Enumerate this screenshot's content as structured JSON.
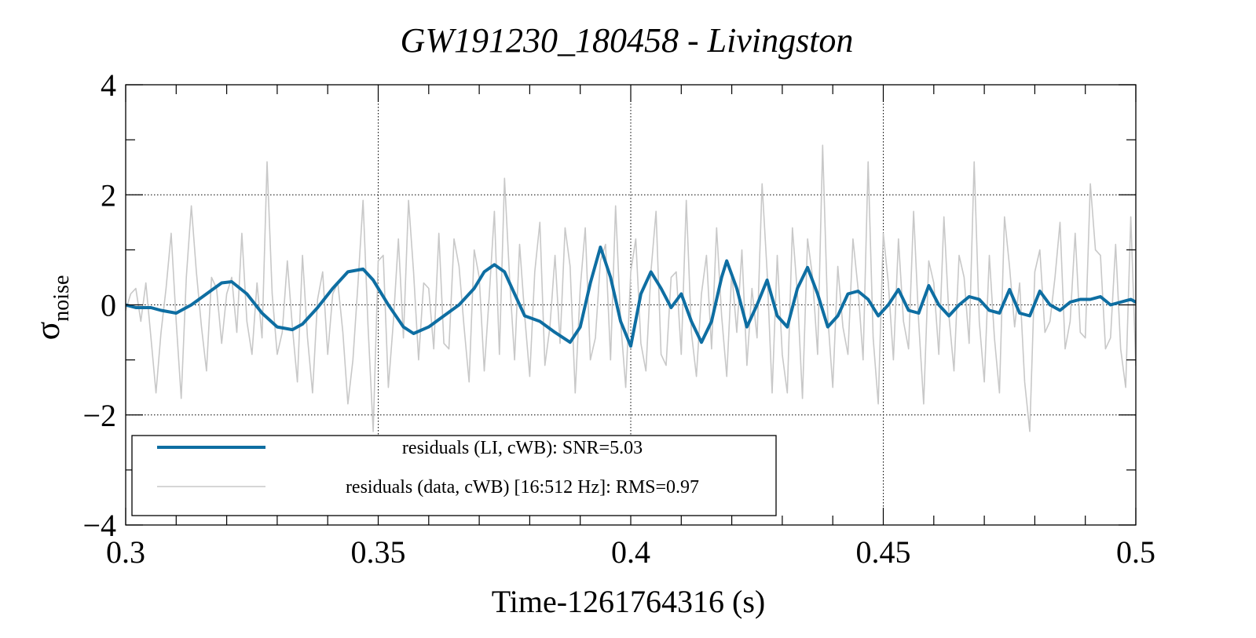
{
  "chart_data": {
    "type": "line",
    "title": "GW191230_180458 - Livingston",
    "xlabel": "Time-1261764316 (s)",
    "ylabel_main": "σ",
    "ylabel_sub": "noise",
    "xlim": [
      0.3,
      0.5
    ],
    "ylim": [
      -4,
      4
    ],
    "xticks": [
      0.3,
      0.35,
      0.4,
      0.45,
      0.5
    ],
    "xtick_labels": [
      "0.3",
      "0.35",
      "0.4",
      "0.45",
      "0.5"
    ],
    "yticks": [
      -4,
      -2,
      0,
      2,
      4
    ],
    "ytick_labels": [
      "−4",
      "−2",
      "0",
      "2",
      "4"
    ],
    "grid": true,
    "legend_position": "bottom-left",
    "series": [
      {
        "name": "residuals (LI, cWB): SNR=5.03",
        "color": "#0e6ea2",
        "x": [
          0.3,
          0.302,
          0.305,
          0.307,
          0.31,
          0.313,
          0.316,
          0.319,
          0.321,
          0.324,
          0.327,
          0.33,
          0.333,
          0.335,
          0.338,
          0.341,
          0.344,
          0.347,
          0.349,
          0.352,
          0.355,
          0.357,
          0.36,
          0.363,
          0.366,
          0.369,
          0.371,
          0.373,
          0.375,
          0.377,
          0.379,
          0.382,
          0.385,
          0.388,
          0.39,
          0.392,
          0.394,
          0.396,
          0.398,
          0.4,
          0.402,
          0.404,
          0.406,
          0.408,
          0.41,
          0.412,
          0.414,
          0.416,
          0.418,
          0.419,
          0.421,
          0.423,
          0.425,
          0.427,
          0.429,
          0.431,
          0.433,
          0.435,
          0.437,
          0.439,
          0.441,
          0.443,
          0.445,
          0.447,
          0.449,
          0.451,
          0.453,
          0.455,
          0.457,
          0.459,
          0.461,
          0.463,
          0.465,
          0.467,
          0.469,
          0.471,
          0.473,
          0.475,
          0.477,
          0.479,
          0.481,
          0.483,
          0.485,
          0.487,
          0.489,
          0.491,
          0.493,
          0.495,
          0.497,
          0.499,
          0.5
        ],
        "y": [
          0.0,
          -0.05,
          -0.05,
          -0.1,
          -0.15,
          0.0,
          0.2,
          0.4,
          0.42,
          0.2,
          -0.15,
          -0.4,
          -0.45,
          -0.35,
          -0.05,
          0.3,
          0.6,
          0.65,
          0.45,
          0.0,
          -0.4,
          -0.52,
          -0.4,
          -0.2,
          0.0,
          0.3,
          0.6,
          0.73,
          0.6,
          0.2,
          -0.2,
          -0.3,
          -0.5,
          -0.68,
          -0.4,
          0.4,
          1.05,
          0.5,
          -0.3,
          -0.75,
          0.2,
          0.6,
          0.3,
          -0.05,
          0.2,
          -0.3,
          -0.68,
          -0.3,
          0.5,
          0.8,
          0.3,
          -0.4,
          0.0,
          0.45,
          -0.2,
          -0.4,
          0.3,
          0.68,
          0.2,
          -0.4,
          -0.2,
          0.2,
          0.25,
          0.1,
          -0.2,
          0.0,
          0.28,
          -0.1,
          -0.15,
          0.35,
          0.0,
          -0.2,
          0.0,
          0.15,
          0.1,
          -0.1,
          -0.15,
          0.28,
          -0.15,
          -0.2,
          0.25,
          0.0,
          -0.1,
          0.05,
          0.1,
          0.1,
          0.15,
          0.0,
          0.05,
          0.1,
          0.05
        ]
      },
      {
        "name": "residuals (data, cWB) [16:512 Hz]: RMS=0.97",
        "color": "#c8c8c8",
        "x": [
          0.3,
          0.301,
          0.302,
          0.303,
          0.304,
          0.305,
          0.306,
          0.307,
          0.308,
          0.309,
          0.31,
          0.311,
          0.312,
          0.313,
          0.314,
          0.315,
          0.316,
          0.317,
          0.318,
          0.319,
          0.32,
          0.321,
          0.322,
          0.323,
          0.324,
          0.325,
          0.326,
          0.327,
          0.328,
          0.329,
          0.33,
          0.331,
          0.332,
          0.333,
          0.334,
          0.335,
          0.336,
          0.337,
          0.338,
          0.339,
          0.34,
          0.341,
          0.342,
          0.343,
          0.344,
          0.345,
          0.346,
          0.347,
          0.348,
          0.349,
          0.35,
          0.351,
          0.352,
          0.353,
          0.354,
          0.355,
          0.356,
          0.357,
          0.358,
          0.359,
          0.36,
          0.361,
          0.362,
          0.363,
          0.364,
          0.365,
          0.366,
          0.367,
          0.368,
          0.369,
          0.37,
          0.371,
          0.372,
          0.373,
          0.374,
          0.375,
          0.376,
          0.377,
          0.378,
          0.379,
          0.38,
          0.381,
          0.382,
          0.383,
          0.384,
          0.385,
          0.386,
          0.387,
          0.388,
          0.389,
          0.39,
          0.391,
          0.392,
          0.393,
          0.394,
          0.395,
          0.396,
          0.397,
          0.398,
          0.399,
          0.4,
          0.401,
          0.402,
          0.403,
          0.404,
          0.405,
          0.406,
          0.407,
          0.408,
          0.409,
          0.41,
          0.411,
          0.412,
          0.413,
          0.414,
          0.415,
          0.416,
          0.417,
          0.418,
          0.419,
          0.42,
          0.421,
          0.422,
          0.423,
          0.424,
          0.425,
          0.426,
          0.427,
          0.428,
          0.429,
          0.43,
          0.431,
          0.432,
          0.433,
          0.434,
          0.435,
          0.436,
          0.437,
          0.438,
          0.439,
          0.44,
          0.441,
          0.442,
          0.443,
          0.444,
          0.445,
          0.446,
          0.447,
          0.448,
          0.449,
          0.45,
          0.451,
          0.452,
          0.453,
          0.454,
          0.455,
          0.456,
          0.457,
          0.458,
          0.459,
          0.46,
          0.461,
          0.462,
          0.463,
          0.464,
          0.465,
          0.466,
          0.467,
          0.468,
          0.469,
          0.47,
          0.471,
          0.472,
          0.473,
          0.474,
          0.475,
          0.476,
          0.477,
          0.478,
          0.479,
          0.48,
          0.481,
          0.482,
          0.483,
          0.484,
          0.485,
          0.486,
          0.487,
          0.488,
          0.489,
          0.49,
          0.491,
          0.492,
          0.493,
          0.494,
          0.495,
          0.496,
          0.497,
          0.498,
          0.499,
          0.5
        ],
        "y": [
          -0.1,
          0.2,
          0.3,
          -0.3,
          0.4,
          -0.6,
          -1.6,
          -0.5,
          0.3,
          1.3,
          -0.3,
          -1.7,
          0.5,
          1.8,
          0.6,
          -0.4,
          -1.2,
          0.5,
          0.3,
          -0.7,
          0.2,
          0.5,
          -0.5,
          1.3,
          -0.3,
          -0.9,
          0.4,
          -0.6,
          2.6,
          0.2,
          -0.9,
          -0.5,
          0.8,
          -0.4,
          -1.4,
          0.9,
          -0.6,
          -1.6,
          0.1,
          0.6,
          -0.9,
          0.2,
          0.4,
          -0.5,
          -1.8,
          -1.0,
          0.4,
          1.9,
          -0.4,
          -2.3,
          0.8,
          0.9,
          -1.5,
          -0.3,
          1.2,
          -0.6,
          1.9,
          0.6,
          -1.0,
          0.4,
          0.3,
          -0.8,
          1.3,
          -0.7,
          -0.8,
          1.2,
          0.7,
          -0.4,
          -1.4,
          1.0,
          0.5,
          -1.2,
          0.2,
          1.7,
          -0.9,
          2.3,
          0.5,
          -1.0,
          1.1,
          -0.2,
          -1.3,
          0.6,
          1.5,
          -1.1,
          -0.4,
          0.9,
          -0.7,
          1.4,
          0.7,
          -1.6,
          0.3,
          1.4,
          -1.0,
          -0.6,
          0.8,
          1.1,
          -1.0,
          1.8,
          -0.3,
          -1.5,
          0.6,
          1.2,
          -0.7,
          -1.2,
          0.6,
          1.7,
          -0.9,
          -1.1,
          0.5,
          0.6,
          -0.9,
          1.9,
          -0.5,
          -1.3,
          0.2,
          0.9,
          -0.8,
          1.4,
          -0.2,
          -1.3,
          0.6,
          -0.5,
          1.0,
          -1.1,
          0.3,
          -0.6,
          2.2,
          0.6,
          -1.6,
          0.9,
          -0.9,
          -1.6,
          1.4,
          0.2,
          -1.7,
          1.2,
          0.5,
          -0.9,
          2.9,
          -0.2,
          -1.5,
          0.7,
          -0.4,
          -0.9,
          1.2,
          0.3,
          -1.0,
          2.6,
          -0.6,
          -1.8,
          1.3,
          0.4,
          -1.0,
          1.2,
          -0.3,
          -0.8,
          1.7,
          -0.3,
          -1.8,
          0.8,
          0.4,
          -0.9,
          1.6,
          -0.2,
          -1.2,
          0.9,
          0.5,
          -0.7,
          2.6,
          -0.3,
          -1.4,
          0.9,
          -0.6,
          -1.6,
          1.6,
          0.7,
          -0.4,
          0.4,
          -1.4,
          -2.3,
          0.6,
          1.0,
          -0.5,
          -0.3,
          0.5,
          1.5,
          -0.8,
          -0.3,
          1.3,
          -0.5,
          -0.6,
          2.2,
          1.0,
          0.9,
          -0.8,
          -0.6,
          1.1,
          -0.8,
          -1.5,
          1.6,
          -1.1
        ]
      }
    ]
  }
}
